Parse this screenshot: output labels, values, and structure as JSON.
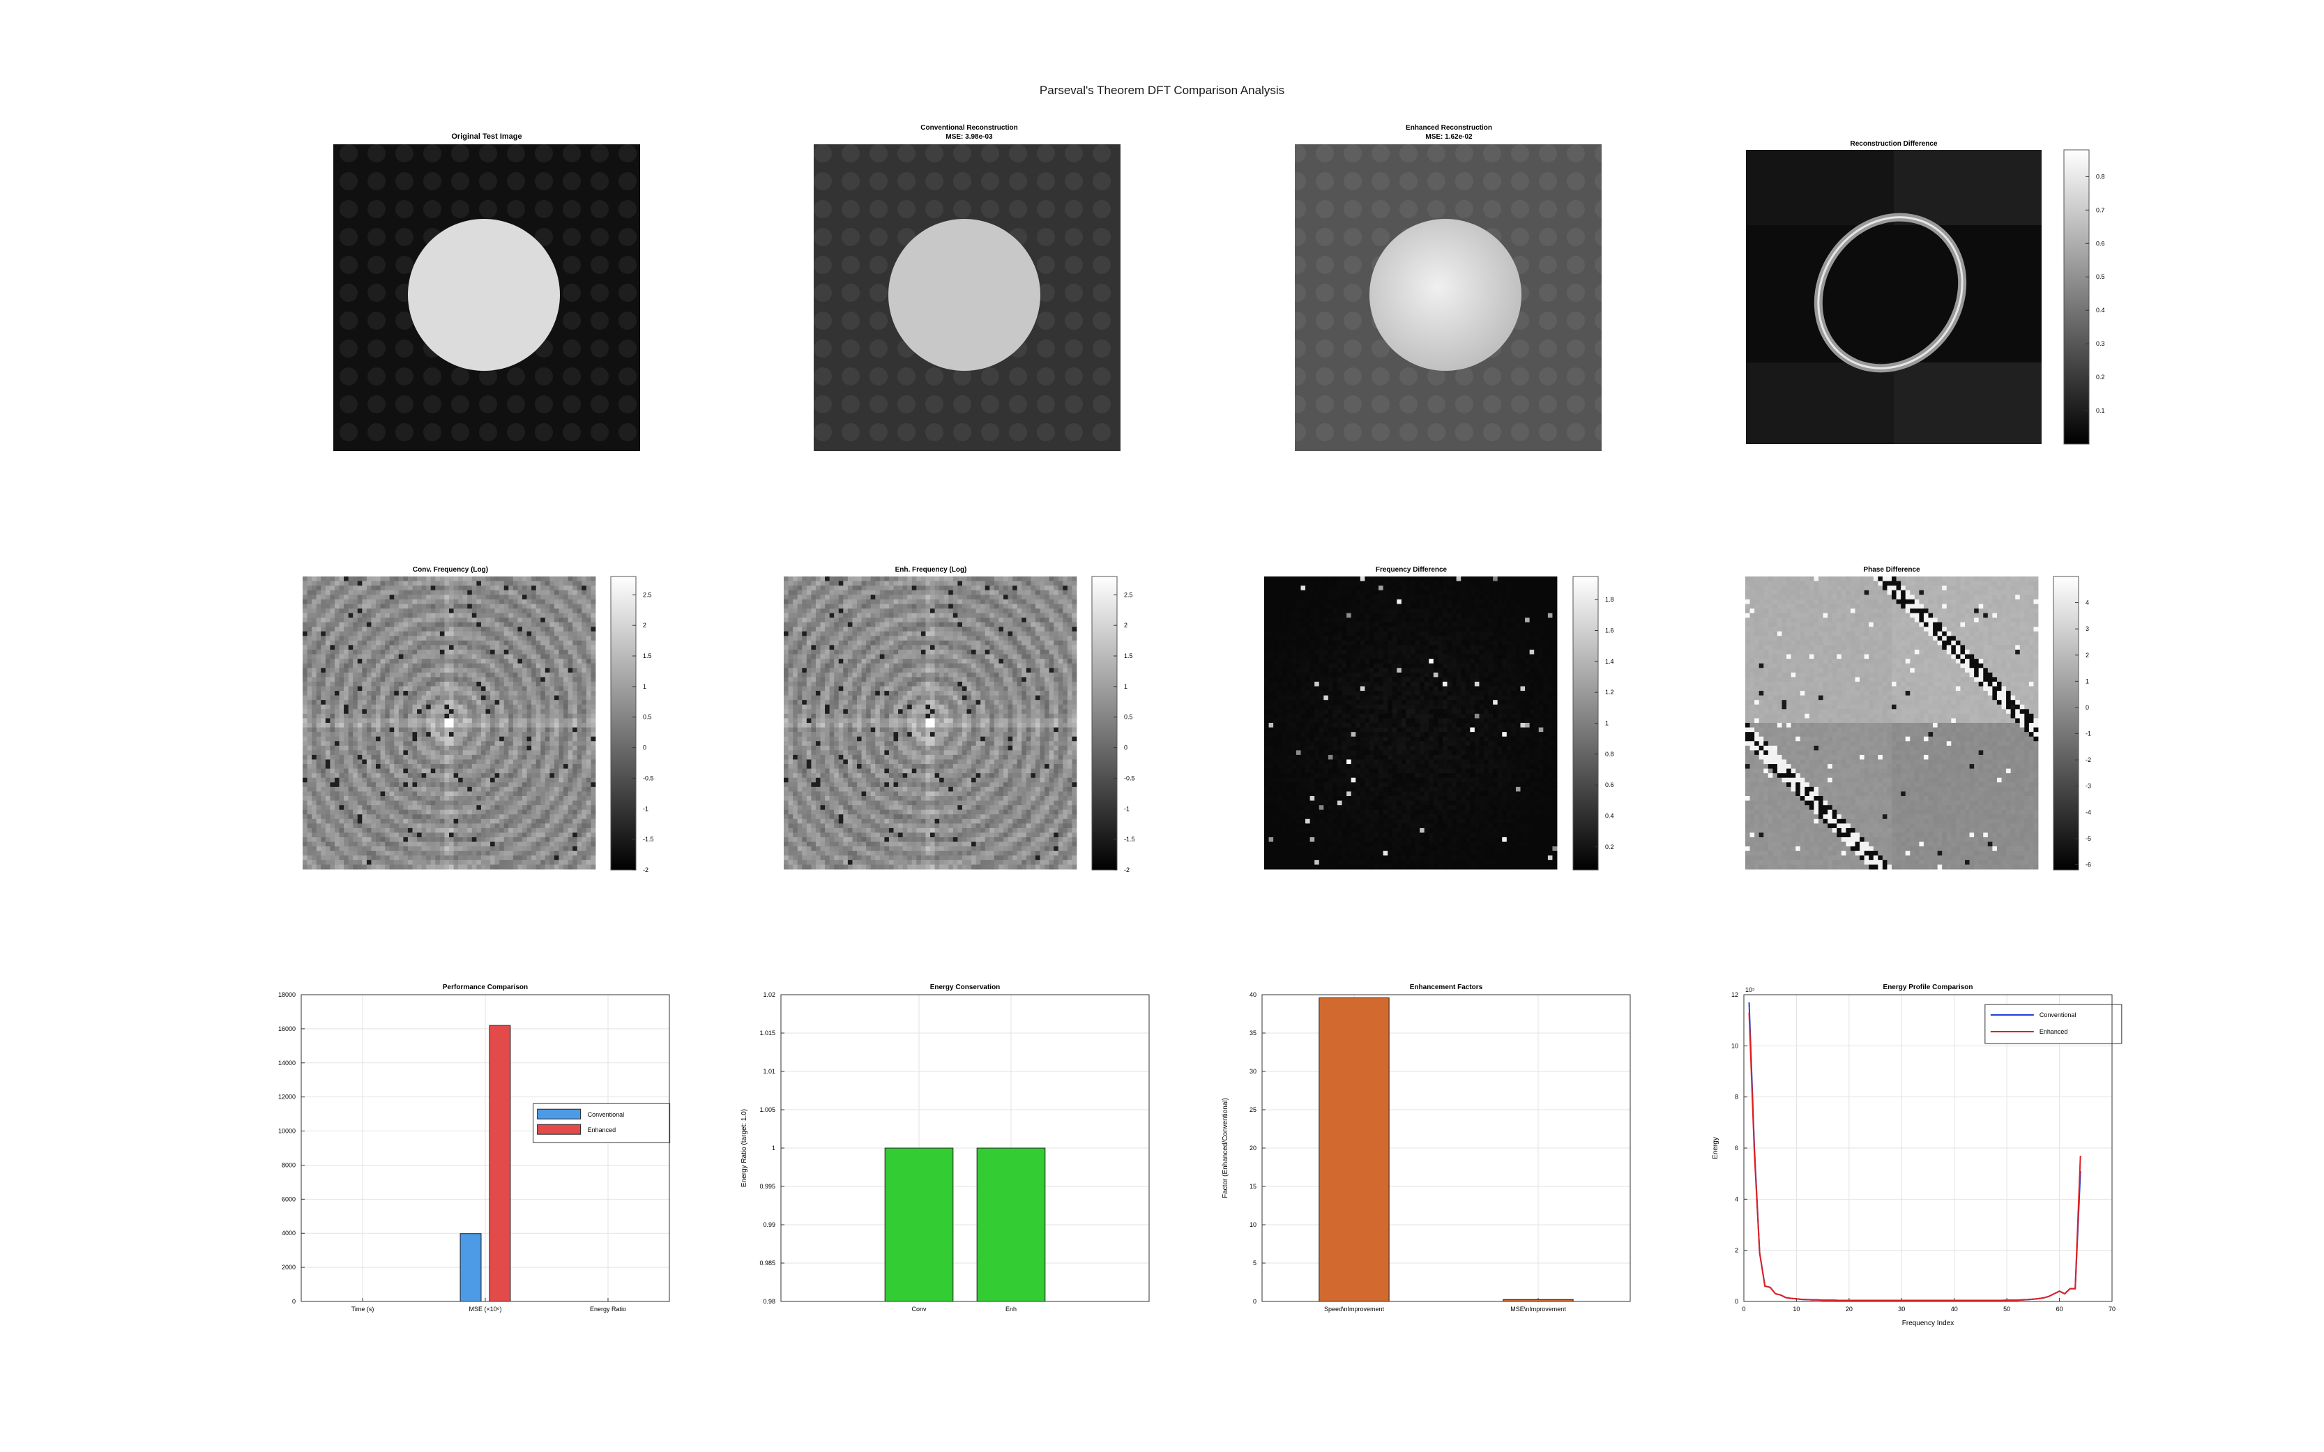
{
  "figure": {
    "suptitle": "Parseval's Theorem DFT Comparison Analysis"
  },
  "panels": {
    "original": {
      "title": "Original Test Image"
    },
    "conventional": {
      "title": "Conventional Reconstruction",
      "subtitle": "MSE: 3.98e-03"
    },
    "enhanced": {
      "title": "Enhanced Reconstruction",
      "subtitle": "MSE: 1.62e-02"
    },
    "recon_diff": {
      "title": "Reconstruction Difference",
      "colorbar_ticks": [
        0.1,
        0.2,
        0.3,
        0.4,
        0.5,
        0.6,
        0.7,
        0.8
      ],
      "colorbar_range": [
        0,
        0.88
      ]
    },
    "conv_freq": {
      "title": "Conv. Frequency (Log)",
      "colorbar_ticks": [
        -2,
        -1.5,
        -1,
        -0.5,
        0,
        0.5,
        1,
        1.5,
        2,
        2.5
      ],
      "colorbar_range": [
        -2,
        2.8
      ]
    },
    "enh_freq": {
      "title": "Enh. Frequency (Log)",
      "colorbar_ticks": [
        -2,
        -1.5,
        -1,
        -0.5,
        0,
        0.5,
        1,
        1.5,
        2,
        2.5
      ],
      "colorbar_range": [
        -2,
        2.8
      ]
    },
    "freq_diff": {
      "title": "Frequency Difference",
      "colorbar_ticks": [
        0.2,
        0.4,
        0.6,
        0.8,
        1,
        1.2,
        1.4,
        1.6,
        1.8
      ],
      "colorbar_range": [
        0.05,
        1.95
      ]
    },
    "phase_diff": {
      "title": "Phase Difference",
      "colorbar_ticks": [
        -6,
        -5,
        -4,
        -3,
        -2,
        -1,
        0,
        1,
        2,
        3,
        4
      ],
      "colorbar_range": [
        -6.2,
        5
      ]
    }
  },
  "chart_data": [
    {
      "type": "bar",
      "title": "Performance Comparison",
      "categories": [
        "Time (s)",
        "MSE (×10⁶)",
        "Energy Ratio"
      ],
      "series": [
        {
          "name": "Conventional",
          "values": [
            0.01,
            3980,
            1
          ],
          "color": "#4d9be6"
        },
        {
          "name": "Enhanced",
          "values": [
            0.0003,
            16200,
            1
          ],
          "color": "#e34a4a"
        }
      ],
      "ylim": [
        0,
        18000
      ],
      "yticks": [
        0,
        2000,
        4000,
        6000,
        8000,
        10000,
        12000,
        14000,
        16000,
        18000
      ],
      "grid": true,
      "legend": "center-right"
    },
    {
      "type": "bar",
      "title": "Energy Conservation",
      "categories": [
        "Conv",
        "Enh"
      ],
      "values": [
        1,
        1
      ],
      "color": "#33cc33",
      "ylabel": "Energy Ratio (target: 1.0)",
      "ylim": [
        0.98,
        1.02
      ],
      "yticks": [
        0.98,
        0.985,
        0.99,
        0.995,
        1,
        1.005,
        1.01,
        1.015,
        1.02
      ],
      "grid": true
    },
    {
      "type": "bar",
      "title": "Enhancement Factors",
      "categories": [
        "Speed\\nImprovement",
        "MSE\\nImprovement"
      ],
      "values": [
        39.6,
        0.25
      ],
      "color": "#d2692f",
      "ylabel": "Factor (Enhanced/Conventional)",
      "ylim": [
        0,
        40
      ],
      "yticks": [
        0,
        5,
        10,
        15,
        20,
        25,
        30,
        35,
        40
      ],
      "grid": true
    },
    {
      "type": "line",
      "title": "Energy Profile Comparison",
      "xlabel": "Frequency Index",
      "ylabel": "Energy",
      "y_exponent": "10⁵",
      "xlim": [
        0,
        70
      ],
      "ylim": [
        0,
        12
      ],
      "xticks": [
        0,
        10,
        20,
        30,
        40,
        50,
        60,
        70
      ],
      "yticks": [
        0,
        2,
        4,
        6,
        8,
        10,
        12
      ],
      "grid": true,
      "legend": "top-right",
      "series": [
        {
          "name": "Conventional",
          "color": "#1f3fd6",
          "x": [
            1,
            2,
            3,
            4,
            5,
            6,
            7,
            8,
            9,
            10,
            11,
            12,
            13,
            14,
            15,
            16,
            17,
            18,
            19,
            20,
            21,
            22,
            23,
            24,
            25,
            26,
            27,
            28,
            29,
            30,
            31,
            32,
            33,
            34,
            35,
            36,
            37,
            38,
            39,
            40,
            41,
            42,
            43,
            44,
            45,
            46,
            47,
            48,
            49,
            50,
            51,
            52,
            53,
            54,
            55,
            56,
            57,
            58,
            59,
            60,
            61,
            62,
            63,
            64
          ],
          "y": [
            11.7,
            6.0,
            1.9,
            0.6,
            0.55,
            0.3,
            0.25,
            0.15,
            0.12,
            0.1,
            0.08,
            0.07,
            0.06,
            0.06,
            0.05,
            0.05,
            0.05,
            0.04,
            0.04,
            0.04,
            0.04,
            0.04,
            0.04,
            0.04,
            0.04,
            0.04,
            0.04,
            0.04,
            0.04,
            0.04,
            0.04,
            0.04,
            0.04,
            0.04,
            0.04,
            0.04,
            0.04,
            0.04,
            0.04,
            0.04,
            0.04,
            0.04,
            0.04,
            0.04,
            0.04,
            0.04,
            0.04,
            0.04,
            0.04,
            0.05,
            0.05,
            0.05,
            0.06,
            0.07,
            0.09,
            0.11,
            0.14,
            0.2,
            0.3,
            0.4,
            0.3,
            0.5,
            0.5,
            5.1
          ]
        },
        {
          "name": "Enhanced",
          "color": "#e02020",
          "x": [
            1,
            2,
            3,
            4,
            5,
            6,
            7,
            8,
            9,
            10,
            11,
            12,
            13,
            14,
            15,
            16,
            17,
            18,
            19,
            20,
            21,
            22,
            23,
            24,
            25,
            26,
            27,
            28,
            29,
            30,
            31,
            32,
            33,
            34,
            35,
            36,
            37,
            38,
            39,
            40,
            41,
            42,
            43,
            44,
            45,
            46,
            47,
            48,
            49,
            50,
            51,
            52,
            53,
            54,
            55,
            56,
            57,
            58,
            59,
            60,
            61,
            62,
            63,
            64
          ],
          "y": [
            11.3,
            5.8,
            1.9,
            0.6,
            0.55,
            0.3,
            0.25,
            0.15,
            0.12,
            0.1,
            0.08,
            0.07,
            0.06,
            0.06,
            0.05,
            0.05,
            0.05,
            0.04,
            0.04,
            0.04,
            0.04,
            0.04,
            0.04,
            0.04,
            0.04,
            0.04,
            0.04,
            0.04,
            0.04,
            0.04,
            0.04,
            0.04,
            0.04,
            0.04,
            0.04,
            0.04,
            0.04,
            0.04,
            0.04,
            0.04,
            0.04,
            0.04,
            0.04,
            0.04,
            0.04,
            0.04,
            0.04,
            0.04,
            0.04,
            0.05,
            0.05,
            0.05,
            0.06,
            0.07,
            0.09,
            0.11,
            0.14,
            0.2,
            0.3,
            0.4,
            0.3,
            0.5,
            0.5,
            5.7
          ]
        }
      ]
    }
  ]
}
